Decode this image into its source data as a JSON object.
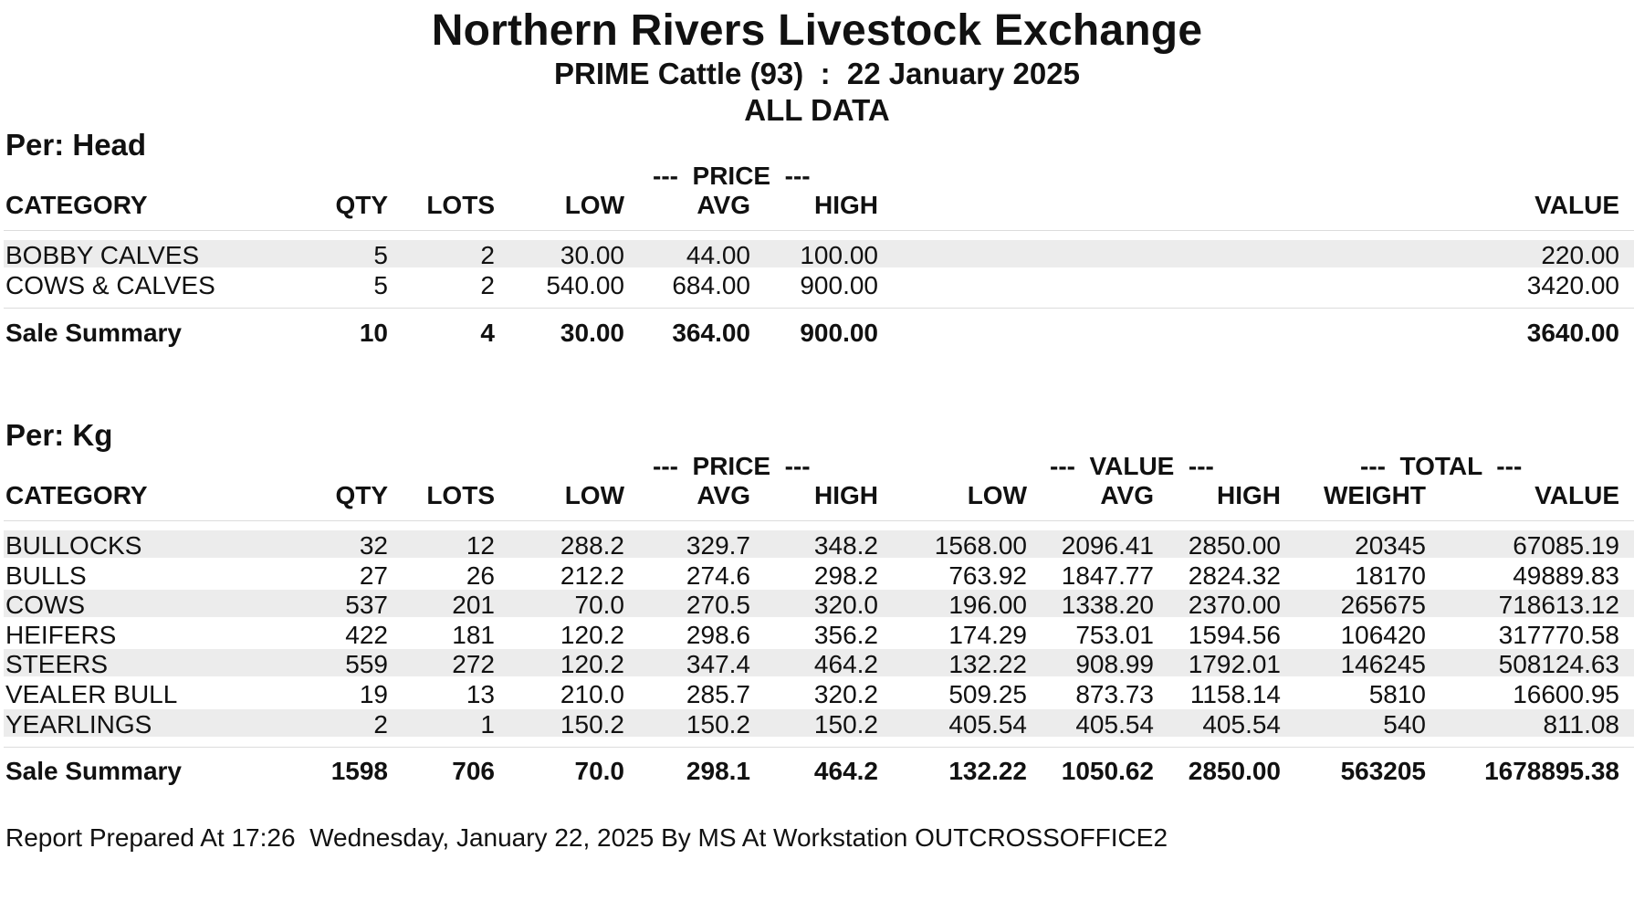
{
  "report": {
    "title": "Northern Rivers Livestock Exchange",
    "subtitle": "PRIME Cattle (93)  :  22 January 2025",
    "scope": "ALL DATA"
  },
  "per_head": {
    "label": "Per: Head",
    "group_price": "---  PRICE  ---",
    "headers": {
      "category": "CATEGORY",
      "qty": "QTY",
      "lots": "LOTS",
      "low": "LOW",
      "avg": "AVG",
      "high": "HIGH",
      "value": "VALUE"
    },
    "rows": [
      {
        "category": "BOBBY CALVES",
        "qty": "5",
        "lots": "2",
        "low": "30.00",
        "avg": "44.00",
        "high": "100.00",
        "value": "220.00"
      },
      {
        "category": "COWS & CALVES",
        "qty": "5",
        "lots": "2",
        "low": "540.00",
        "avg": "684.00",
        "high": "900.00",
        "value": "3420.00"
      }
    ],
    "summary": {
      "category": "Sale Summary",
      "qty": "10",
      "lots": "4",
      "low": "30.00",
      "avg": "364.00",
      "high": "900.00",
      "value": "3640.00"
    }
  },
  "per_kg": {
    "label": "Per: Kg",
    "group_price": "---  PRICE  ---",
    "group_value": "---  VALUE  ---",
    "group_total": "---  TOTAL  ---",
    "headers": {
      "category": "CATEGORY",
      "qty": "QTY",
      "lots": "LOTS",
      "low": "LOW",
      "avg": "AVG",
      "high": "HIGH",
      "vlow": "LOW",
      "vavg": "AVG",
      "vhigh": "HIGH",
      "weight": "WEIGHT",
      "value": "VALUE"
    },
    "rows": [
      {
        "category": "BULLOCKS",
        "qty": "32",
        "lots": "12",
        "low": "288.2",
        "avg": "329.7",
        "high": "348.2",
        "vlow": "1568.00",
        "vavg": "2096.41",
        "vhigh": "2850.00",
        "weight": "20345",
        "value": "67085.19"
      },
      {
        "category": "BULLS",
        "qty": "27",
        "lots": "26",
        "low": "212.2",
        "avg": "274.6",
        "high": "298.2",
        "vlow": "763.92",
        "vavg": "1847.77",
        "vhigh": "2824.32",
        "weight": "18170",
        "value": "49889.83"
      },
      {
        "category": "COWS",
        "qty": "537",
        "lots": "201",
        "low": "70.0",
        "avg": "270.5",
        "high": "320.0",
        "vlow": "196.00",
        "vavg": "1338.20",
        "vhigh": "2370.00",
        "weight": "265675",
        "value": "718613.12"
      },
      {
        "category": "HEIFERS",
        "qty": "422",
        "lots": "181",
        "low": "120.2",
        "avg": "298.6",
        "high": "356.2",
        "vlow": "174.29",
        "vavg": "753.01",
        "vhigh": "1594.56",
        "weight": "106420",
        "value": "317770.58"
      },
      {
        "category": "STEERS",
        "qty": "559",
        "lots": "272",
        "low": "120.2",
        "avg": "347.4",
        "high": "464.2",
        "vlow": "132.22",
        "vavg": "908.99",
        "vhigh": "1792.01",
        "weight": "146245",
        "value": "508124.63"
      },
      {
        "category": "VEALER BULL",
        "qty": "19",
        "lots": "13",
        "low": "210.0",
        "avg": "285.7",
        "high": "320.2",
        "vlow": "509.25",
        "vavg": "873.73",
        "vhigh": "1158.14",
        "weight": "5810",
        "value": "16600.95"
      },
      {
        "category": "YEARLINGS",
        "qty": "2",
        "lots": "1",
        "low": "150.2",
        "avg": "150.2",
        "high": "150.2",
        "vlow": "405.54",
        "vavg": "405.54",
        "vhigh": "405.54",
        "weight": "540",
        "value": "811.08"
      }
    ],
    "summary": {
      "category": "Sale Summary",
      "qty": "1598",
      "lots": "706",
      "low": "70.0",
      "avg": "298.1",
      "high": "464.2",
      "vlow": "132.22",
      "vavg": "1050.62",
      "vhigh": "2850.00",
      "weight": "563205",
      "value": "1678895.38"
    }
  },
  "footer": {
    "text": "Report Prepared At 17:26  Wednesday, January 22, 2025 By MS At Workstation OUTCROSSOFFICE2"
  }
}
